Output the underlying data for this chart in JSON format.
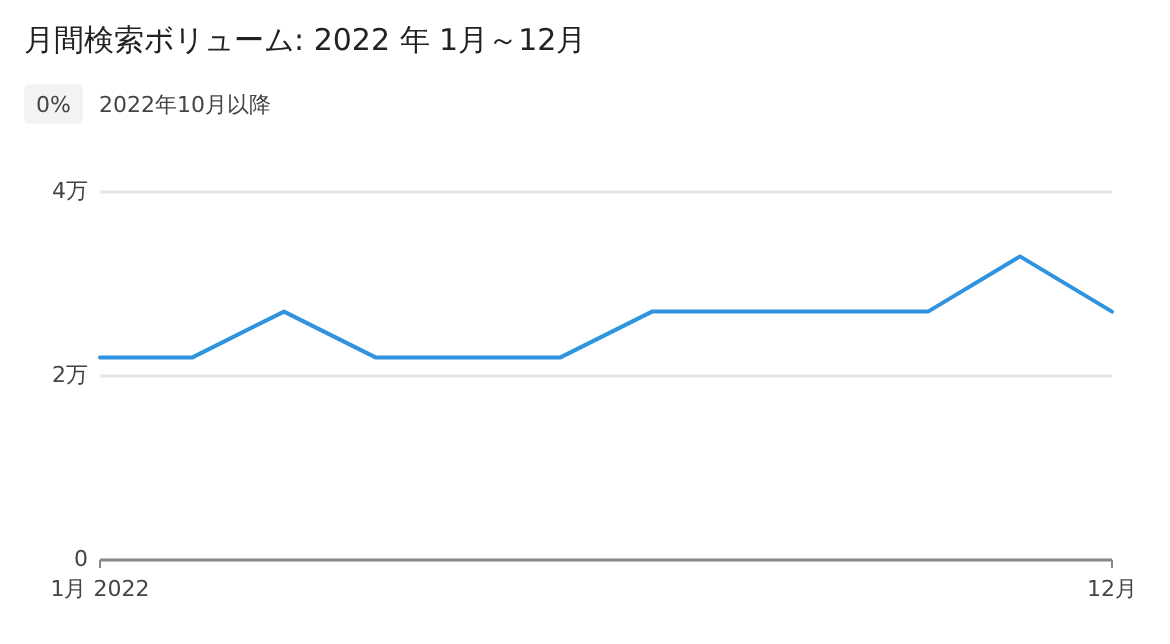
{
  "chart_data": {
    "type": "line",
    "title": "月間検索ボリューム: 2022 年 1月～12月",
    "annotations": [
      "0%",
      "2022年10月以降"
    ],
    "categories": [
      "1月 2022",
      null,
      null,
      null,
      null,
      null,
      null,
      null,
      null,
      null,
      null,
      "12月"
    ],
    "values": [
      2.2,
      2.2,
      2.7,
      2.2,
      2.2,
      2.2,
      2.7,
      2.7,
      2.7,
      2.7,
      3.3,
      2.7
    ],
    "color": "#2f93e0",
    "ylim": [
      0,
      4
    ],
    "yticks": [
      0,
      {
        "value": 2,
        "label": "2万"
      },
      {
        "value": 4,
        "label": "4万"
      }
    ],
    "grid": "y"
  }
}
